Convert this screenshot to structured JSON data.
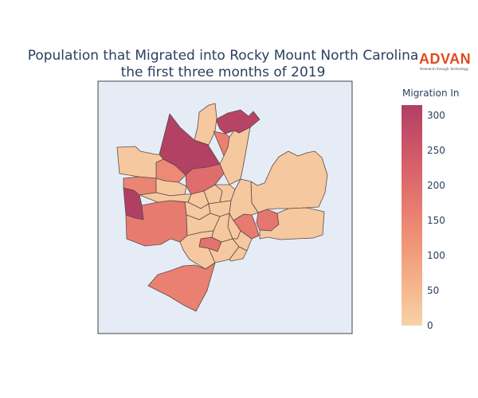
{
  "title": {
    "line1": "Population that Migrated into Rocky Mount North Carolina",
    "line2": "the first three months of 2019"
  },
  "logo": {
    "word": "ADVAN",
    "tagline": "Research through Technology"
  },
  "colorbar": {
    "title": "Migration In",
    "ticks": [
      "0",
      "50",
      "100",
      "150",
      "200",
      "250",
      "300"
    ],
    "range": [
      0,
      315
    ],
    "colors": [
      "#f6d2a9",
      "#f5b78e",
      "#f19c7c",
      "#ea8171",
      "#dd686c",
      "#ca5268",
      "#b13f64"
    ]
  },
  "chart_data": {
    "type": "choropleth",
    "value_label": "Migration In",
    "regions": [
      {
        "id": "north-large",
        "value": 310
      },
      {
        "id": "northeast-top",
        "value": 300
      },
      {
        "id": "west-strip",
        "value": 315
      },
      {
        "id": "north-top-small",
        "value": 20
      },
      {
        "id": "north-mid",
        "value": 160
      },
      {
        "id": "north-east-strip",
        "value": 20
      },
      {
        "id": "north-block-a",
        "value": 140
      },
      {
        "id": "north-block-b",
        "value": 200
      },
      {
        "id": "west-large",
        "value": 20
      },
      {
        "id": "west-mid",
        "value": 150
      },
      {
        "id": "west-south",
        "value": 170
      },
      {
        "id": "center-a",
        "value": 20
      },
      {
        "id": "center-b",
        "value": 20
      },
      {
        "id": "center-c",
        "value": 20
      },
      {
        "id": "center-d",
        "value": 20
      },
      {
        "id": "center-e",
        "value": 20
      },
      {
        "id": "center-f",
        "value": 20
      },
      {
        "id": "center-g",
        "value": 20
      },
      {
        "id": "center-h",
        "value": 20
      },
      {
        "id": "center-south-a",
        "value": 190
      },
      {
        "id": "center-south-b",
        "value": 20
      },
      {
        "id": "center-south-c",
        "value": 20
      },
      {
        "id": "south-large",
        "value": 160
      },
      {
        "id": "east-mid",
        "value": 170
      },
      {
        "id": "east-small-a",
        "value": 180
      },
      {
        "id": "east-small-b",
        "value": 20
      },
      {
        "id": "east-large",
        "value": 20
      },
      {
        "id": "east-south",
        "value": 20
      },
      {
        "id": "east-center",
        "value": 20
      },
      {
        "id": "center-i",
        "value": 20
      },
      {
        "id": "center-j",
        "value": 20
      },
      {
        "id": "center-k",
        "value": 20
      }
    ]
  }
}
